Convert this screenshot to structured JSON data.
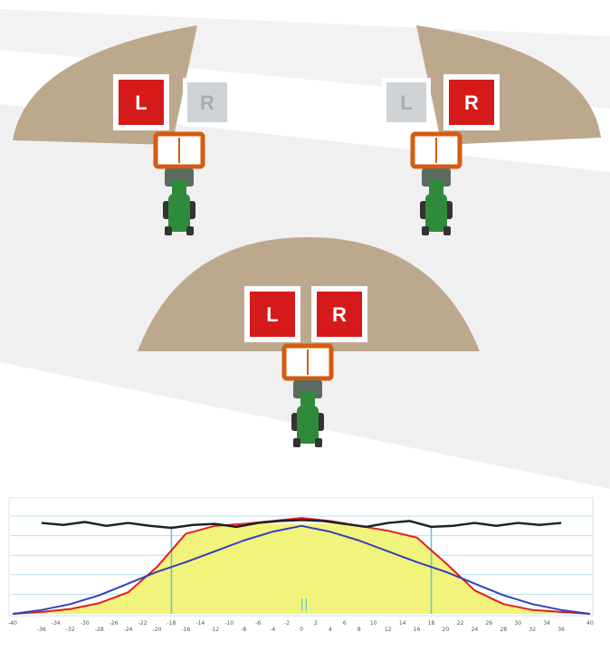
{
  "colors": {
    "spread_fan": "#bca98d",
    "active_section": "#d51a1a",
    "inactive_section": "#d0d3d5",
    "spreader_frame": "#d45b10",
    "tractor_green": "#2f8b3b",
    "background_band": "#f0f0f0",
    "chart_fill": "#f2f37a",
    "series_red": "#e02020",
    "series_blue": "#3040c0",
    "series_black": "#222222",
    "gridline": "#b8dff0"
  },
  "diagrams": [
    {
      "id": "left-only",
      "left_label": "L",
      "right_label": "R",
      "left_active": true,
      "right_active": false
    },
    {
      "id": "right-only",
      "left_label": "L",
      "right_label": "R",
      "left_active": false,
      "right_active": true
    },
    {
      "id": "both",
      "left_label": "L",
      "right_label": "R",
      "left_active": true,
      "right_active": true
    }
  ],
  "chart_data": {
    "type": "line",
    "title": "",
    "xlabel": "",
    "ylabel": "",
    "xlim": [
      -40,
      40
    ],
    "grid": true,
    "x_ticks": [
      -40,
      -36,
      -34,
      -32,
      -30,
      -28,
      -26,
      -24,
      -22,
      -20,
      -18,
      -16,
      -14,
      -12,
      -10,
      -8,
      -6,
      -4,
      -2,
      0,
      2,
      4,
      6,
      8,
      10,
      12,
      14,
      16,
      18,
      20,
      22,
      24,
      26,
      28,
      30,
      32,
      34,
      36,
      40
    ],
    "x_tick_labels": [
      "-40",
      "-36",
      "-34",
      "-32",
      "-30",
      "-28",
      "-26",
      "-24",
      "-22",
      "-20",
      "-18",
      "-16",
      "-14",
      "-12",
      "-10",
      "-8",
      "-6",
      "-4",
      "-2",
      "0",
      "2",
      "4",
      "6",
      "8",
      "10",
      "12",
      "14",
      "16",
      "18",
      "20",
      "22",
      "24",
      "26",
      "28",
      "30",
      "32",
      "34",
      "36",
      "40"
    ],
    "vertical_markers": [
      -18,
      18
    ],
    "center_marker": "||",
    "series": [
      {
        "color": "#222222",
        "x": [
          -36,
          -33,
          -30,
          -27,
          -24,
          -21,
          -18,
          -15,
          -12,
          -9,
          -6,
          -3,
          0,
          3,
          6,
          9,
          12,
          15,
          18,
          21,
          24,
          27,
          30,
          33,
          36
        ],
        "y": [
          0.93,
          0.91,
          0.94,
          0.9,
          0.93,
          0.9,
          0.88,
          0.91,
          0.92,
          0.89,
          0.93,
          0.95,
          0.96,
          0.95,
          0.92,
          0.89,
          0.93,
          0.95,
          0.89,
          0.9,
          0.93,
          0.9,
          0.93,
          0.91,
          0.93
        ]
      },
      {
        "color": "#e02020",
        "x": [
          -40,
          -36,
          -32,
          -28,
          -24,
          -20,
          -16,
          -12,
          -8,
          -4,
          0,
          4,
          8,
          12,
          16,
          20,
          24,
          28,
          32,
          36,
          40
        ],
        "y": [
          0.0,
          0.02,
          0.05,
          0.11,
          0.22,
          0.48,
          0.82,
          0.9,
          0.92,
          0.95,
          0.98,
          0.95,
          0.9,
          0.85,
          0.78,
          0.52,
          0.24,
          0.1,
          0.04,
          0.02,
          0.0
        ]
      },
      {
        "color": "#3040c0",
        "x": [
          -40,
          -36,
          -32,
          -28,
          -24,
          -20,
          -16,
          -12,
          -8,
          -4,
          0,
          4,
          8,
          12,
          16,
          20,
          24,
          28,
          32,
          36,
          40
        ],
        "y": [
          0.0,
          0.04,
          0.1,
          0.19,
          0.31,
          0.43,
          0.53,
          0.64,
          0.75,
          0.84,
          0.9,
          0.84,
          0.75,
          0.64,
          0.53,
          0.43,
          0.31,
          0.19,
          0.1,
          0.04,
          0.0
        ]
      }
    ]
  }
}
